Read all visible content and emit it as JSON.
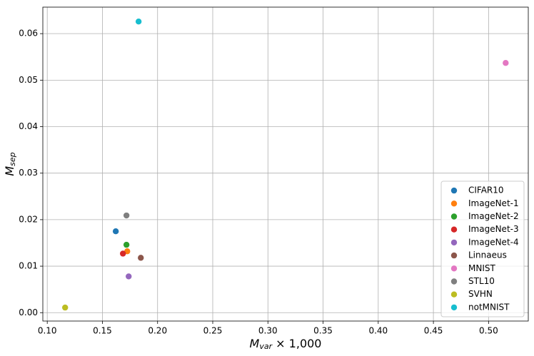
{
  "chart_data": {
    "type": "scatter",
    "xlabel": {
      "main": "M",
      "sub": "var",
      "rest": " × 1,000"
    },
    "ylabel": {
      "main": "M",
      "sub": "sep"
    },
    "xlim": [
      0.096,
      0.536
    ],
    "ylim": [
      -0.0018,
      0.0657
    ],
    "xticks": [
      {
        "value": 0.1,
        "label": "0.10"
      },
      {
        "value": 0.15,
        "label": "0.15"
      },
      {
        "value": 0.2,
        "label": "0.20"
      },
      {
        "value": 0.25,
        "label": "0.25"
      },
      {
        "value": 0.3,
        "label": "0.30"
      },
      {
        "value": 0.35,
        "label": "0.35"
      },
      {
        "value": 0.4,
        "label": "0.40"
      },
      {
        "value": 0.45,
        "label": "0.45"
      },
      {
        "value": 0.5,
        "label": "0.50"
      }
    ],
    "yticks": [
      {
        "value": 0,
        "label": "0.00"
      },
      {
        "value": 0.01,
        "label": "0.01"
      },
      {
        "value": 0.02,
        "label": "0.02"
      },
      {
        "value": 0.03,
        "label": "0.03"
      },
      {
        "value": 0.04,
        "label": "0.04"
      },
      {
        "value": 0.05,
        "label": "0.05"
      },
      {
        "value": 0.06,
        "label": "0.06"
      }
    ],
    "grid": true,
    "legend": "lower right",
    "series": [
      {
        "name": "CIFAR10",
        "color": "#1f77b4",
        "x": [
          0.1621
        ],
        "values": [
          0.0175
        ]
      },
      {
        "name": "ImageNet-1",
        "color": "#ff7f0e",
        "x": [
          0.1725
        ],
        "values": [
          0.0132
        ]
      },
      {
        "name": "ImageNet-2",
        "color": "#2ca02c",
        "x": [
          0.1718
        ],
        "values": [
          0.0146
        ]
      },
      {
        "name": "ImageNet-3",
        "color": "#d62728",
        "x": [
          0.1686
        ],
        "values": [
          0.0127
        ]
      },
      {
        "name": "ImageNet-4",
        "color": "#9467bd",
        "x": [
          0.1738
        ],
        "values": [
          0.0078
        ]
      },
      {
        "name": "Linnaeus",
        "color": "#8c564b",
        "x": [
          0.1848
        ],
        "values": [
          0.0118
        ]
      },
      {
        "name": "MNIST",
        "color": "#e377c2",
        "x": [
          0.5155
        ],
        "values": [
          0.0537
        ]
      },
      {
        "name": "STL10",
        "color": "#7f7f7f",
        "x": [
          0.1718
        ],
        "values": [
          0.0209
        ]
      },
      {
        "name": "SVHN",
        "color": "#bcbd22",
        "x": [
          0.1162
        ],
        "values": [
          0.0011
        ]
      },
      {
        "name": "notMNIST",
        "color": "#17becf",
        "x": [
          0.1828
        ],
        "values": [
          0.0626
        ]
      }
    ]
  }
}
